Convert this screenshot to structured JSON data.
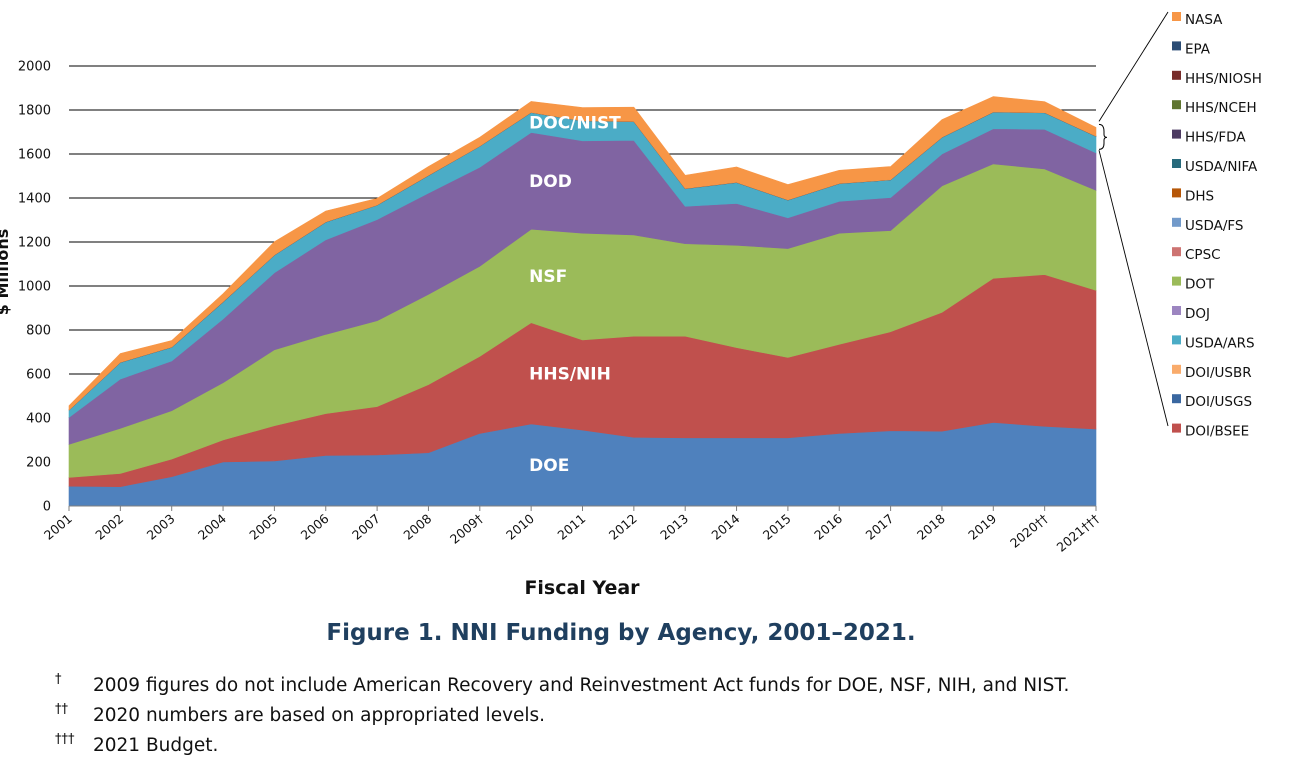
{
  "chart_data": {
    "type": "area",
    "stacked": true,
    "xlabel": "Fiscal Year",
    "ylabel": "$ Millions",
    "ylim": [
      0,
      2000
    ],
    "yticks": [
      0,
      200,
      400,
      600,
      800,
      1000,
      1200,
      1400,
      1600,
      1800,
      2000
    ],
    "grid": "horizontal",
    "legend_position": "right",
    "categories": [
      "2001",
      "2002",
      "2003",
      "2004",
      "2005",
      "2006",
      "2007",
      "2008",
      "2009†",
      "2010",
      "2011",
      "2012",
      "2013",
      "2014",
      "2015",
      "2016",
      "2017",
      "2018",
      "2019",
      "2020††",
      "2021†††"
    ],
    "series": [
      {
        "name": "DOE",
        "color": "#4f81bd",
        "values": [
          90,
          88,
          133,
          200,
          205,
          230,
          232,
          242,
          330,
          373,
          345,
          312,
          310,
          310,
          310,
          330,
          342,
          340,
          380,
          362,
          350
        ]
      },
      {
        "name": "HHS/NIH",
        "color": "#c0504d",
        "values": [
          40,
          60,
          80,
          100,
          160,
          190,
          220,
          310,
          350,
          460,
          410,
          460,
          462,
          410,
          365,
          405,
          450,
          540,
          655,
          690,
          630
        ]
      },
      {
        "name": "NSF",
        "color": "#9bbb59",
        "values": [
          150,
          205,
          220,
          260,
          345,
          360,
          390,
          410,
          410,
          425,
          485,
          460,
          420,
          465,
          495,
          505,
          460,
          575,
          520,
          480,
          455
        ]
      },
      {
        "name": "DOD",
        "color": "#8064a2",
        "values": [
          123,
          224,
          226,
          290,
          350,
          430,
          460,
          460,
          450,
          440,
          420,
          430,
          170,
          190,
          140,
          145,
          150,
          145,
          160,
          180,
          170
        ]
      },
      {
        "name": "DOC/NIST",
        "color": "#4bacc6",
        "values": [
          33,
          75,
          62,
          77,
          80,
          80,
          65,
          80,
          95,
          90,
          90,
          85,
          80,
          95,
          80,
          80,
          80,
          75,
          75,
          75,
          75
        ]
      },
      {
        "name": "DOI/USGS",
        "color": "#2c4d75",
        "values": [
          0,
          1,
          1,
          1,
          1,
          1,
          1,
          1,
          1,
          1,
          1,
          1,
          1,
          1,
          1,
          1,
          1,
          1,
          1,
          1,
          1
        ]
      },
      {
        "name": "DOI/USBR",
        "color": "#f79646",
        "values": [
          0,
          0,
          0,
          0,
          0,
          0,
          0,
          0,
          0,
          0,
          0,
          0,
          0,
          0,
          0,
          0,
          0,
          0,
          0,
          0,
          0
        ]
      },
      {
        "name": "USDA/ARS",
        "color": "#4bacc6",
        "values": [
          0,
          0,
          0,
          0,
          0,
          0,
          0,
          0,
          0,
          0,
          0,
          0,
          0,
          0,
          0,
          0,
          0,
          0,
          0,
          0,
          0
        ]
      },
      {
        "name": "DOJ",
        "color": "#8064a2",
        "values": [
          0,
          0,
          0,
          0,
          0,
          0,
          0,
          0,
          0,
          0,
          0,
          0,
          0,
          0,
          0,
          0,
          0,
          0,
          0,
          0,
          0
        ]
      },
      {
        "name": "DOT",
        "color": "#9bbb59",
        "values": [
          0,
          0,
          0,
          0,
          0,
          0,
          0,
          0,
          0,
          0,
          0,
          0,
          0,
          0,
          0,
          0,
          0,
          0,
          0,
          0,
          0
        ]
      },
      {
        "name": "CPSC",
        "color": "#c0504d",
        "values": [
          0,
          0,
          0,
          0,
          0,
          0,
          0,
          0,
          0,
          0,
          0,
          0,
          0,
          0,
          0,
          0,
          0,
          0,
          0,
          0,
          0
        ]
      },
      {
        "name": "USDA/FS",
        "color": "#4f81bd",
        "values": [
          0,
          0,
          0,
          0,
          0,
          0,
          0,
          0,
          0,
          0,
          0,
          0,
          0,
          0,
          0,
          0,
          0,
          0,
          0,
          0,
          0
        ]
      },
      {
        "name": "DHS",
        "color": "#e36c09",
        "values": [
          0,
          0,
          0,
          0,
          0,
          0,
          0,
          0,
          0,
          0,
          0,
          0,
          0,
          0,
          0,
          0,
          0,
          0,
          0,
          0,
          0
        ]
      },
      {
        "name": "USDA/NIFA",
        "color": "#31859c",
        "values": [
          0,
          0,
          0,
          0,
          0,
          0,
          0,
          0,
          0,
          0,
          0,
          0,
          0,
          0,
          0,
          0,
          0,
          0,
          0,
          0,
          0
        ]
      },
      {
        "name": "HHS/FDA",
        "color": "#5f497a",
        "values": [
          0,
          0,
          0,
          0,
          0,
          0,
          0,
          0,
          0,
          0,
          0,
          0,
          0,
          0,
          0,
          0,
          0,
          0,
          0,
          0,
          0
        ]
      },
      {
        "name": "HHS/NCEH",
        "color": "#77933c",
        "values": [
          0,
          0,
          0,
          0,
          0,
          0,
          0,
          0,
          0,
          0,
          0,
          0,
          0,
          0,
          0,
          0,
          0,
          0,
          0,
          0,
          0
        ]
      },
      {
        "name": "HHS/NIOSH",
        "color": "#953735",
        "values": [
          0,
          0,
          0,
          0,
          0,
          0,
          0,
          0,
          0,
          0,
          0,
          0,
          0,
          0,
          0,
          0,
          0,
          0,
          0,
          0,
          0
        ]
      },
      {
        "name": "EPA",
        "color": "#2c4d75",
        "values": [
          0,
          0,
          0,
          0,
          0,
          0,
          0,
          0,
          0,
          0,
          0,
          0,
          0,
          0,
          0,
          0,
          0,
          0,
          0,
          0,
          0
        ]
      },
      {
        "name": "NASA",
        "color": "#f79646",
        "values": [
          20,
          40,
          30,
          37,
          60,
          50,
          30,
          40,
          40,
          50,
          60,
          65,
          60,
          70,
          70,
          60,
          60,
          80,
          70,
          50,
          40
        ]
      }
    ],
    "legend_order": [
      "NASA",
      "EPA",
      "HHS/NIOSH",
      "HHS/NCEH",
      "HHS/FDA",
      "USDA/NIFA",
      "DHS",
      "USDA/FS",
      "CPSC",
      "DOT",
      "DOJ",
      "USDA/ARS",
      "DOI/USBR",
      "DOI/USGS",
      "DOI/BSEE"
    ],
    "legend_colors": {
      "NASA": "#f79646",
      "EPA": "#2c4d75",
      "HHS/NIOSH": "#772c2a",
      "HHS/NCEH": "#5f7530",
      "HHS/FDA": "#4d3b62",
      "USDA/NIFA": "#276a7c",
      "DHS": "#b65708",
      "USDA/FS": "#729aca",
      "CPSC": "#cd7371",
      "DOT": "#9bbb59",
      "DOJ": "#9c85c0",
      "USDA/ARS": "#4bacc6",
      "DOI/USBR": "#f9ab6b",
      "DOI/USGS": "#3a67a0",
      "DOI/BSEE": "#c0504d"
    },
    "area_labels": [
      "DOE",
      "HHS/NIH",
      "NSF",
      "DOD",
      "DOC/NIST"
    ],
    "title": "Figure 1. NNI Funding by Agency, 2001–2021."
  },
  "footnotes": [
    {
      "symbol": "†",
      "text": "2009 figures do not include American Recovery and Reinvestment Act funds for DOE, NSF, NIH, and NIST."
    },
    {
      "symbol": "††",
      "text": "2020 numbers are based on appropriated levels."
    },
    {
      "symbol": "†††",
      "text": "2021 Budget."
    }
  ]
}
